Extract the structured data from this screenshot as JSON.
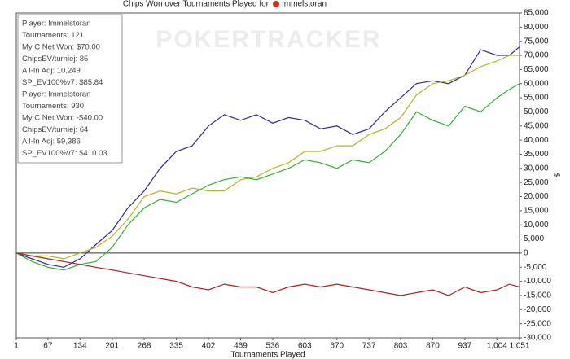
{
  "chart_data": {
    "type": "line",
    "title": "Chips Won over Tournaments Played for",
    "player": "Immelstoran",
    "x_label": "Tournaments Played",
    "y_label": "$",
    "watermark": "POKERTRACKER",
    "info_box": [
      "Player: Immelstoran",
      "Tournaments: 121",
      "My C Net Won: $70.00",
      "ChipsEV/turniej: 85",
      "All-In Adj: 10,249",
      "SP_EV100%v7: $85.84",
      "Player: Immelstoran",
      "Tournaments: 930",
      "My C Net Won: -$40.00",
      "ChipsEV/turniej: 64",
      "All-In Adj: 59,386",
      "SP_EV100%v7: $410.03"
    ],
    "x": [
      1,
      34,
      67,
      100,
      134,
      167,
      201,
      234,
      268,
      301,
      335,
      368,
      402,
      435,
      469,
      502,
      536,
      569,
      603,
      636,
      670,
      703,
      737,
      770,
      803,
      836,
      870,
      903,
      937,
      970,
      1004,
      1030,
      1051
    ],
    "series": [
      {
        "color": "#2a2a9c",
        "values": [
          0,
          -2000,
          -4000,
          -5000,
          -2000,
          3000,
          8000,
          16000,
          22000,
          30000,
          36000,
          38000,
          45000,
          49000,
          47000,
          49000,
          46000,
          48000,
          47000,
          44000,
          45000,
          42000,
          44000,
          50000,
          55000,
          60000,
          61000,
          60000,
          63000,
          72000,
          70000,
          70000,
          73000
        ]
      },
      {
        "color": "#b4b42c",
        "values": [
          0,
          -1000,
          -1000,
          -2000,
          0,
          2000,
          6000,
          12000,
          20000,
          22000,
          21000,
          23000,
          22000,
          22000,
          26000,
          27000,
          30000,
          32000,
          36000,
          36000,
          38000,
          38000,
          42000,
          44000,
          48000,
          56000,
          60000,
          61000,
          63000,
          66000,
          68000,
          70000,
          70000
        ]
      },
      {
        "color": "#34b034",
        "values": [
          0,
          -3000,
          -5000,
          -6000,
          -4000,
          -3000,
          2000,
          10000,
          16000,
          19000,
          18000,
          21000,
          24000,
          26000,
          27000,
          26000,
          28000,
          30000,
          33000,
          32000,
          30000,
          33000,
          32000,
          36000,
          42000,
          50000,
          47000,
          45000,
          52000,
          50000,
          55000,
          58000,
          60000
        ]
      },
      {
        "color": "#b02020",
        "values": [
          0,
          -1000,
          -2000,
          -3000,
          -4000,
          -5000,
          -6000,
          -7000,
          -8000,
          -9000,
          -10000,
          -12000,
          -13000,
          -11000,
          -12000,
          -12000,
          -14000,
          -12000,
          -11000,
          -12000,
          -11000,
          -12000,
          -13000,
          -14000,
          -15000,
          -14000,
          -13000,
          -15000,
          -12000,
          -14000,
          -13000,
          -11000,
          -12000
        ]
      }
    ],
    "xlim": [
      1,
      1051
    ],
    "xticks": [
      1,
      67,
      134,
      201,
      268,
      335,
      402,
      469,
      536,
      603,
      670,
      737,
      803,
      870,
      937,
      {
        "value": 1004,
        "label": "1,004"
      },
      {
        "value": 1051,
        "label": "1,051"
      }
    ],
    "ylim": [
      -30000,
      85000
    ],
    "yticks": [
      {
        "value": -30000,
        "label": "-30,000"
      },
      {
        "value": -25000,
        "label": "-25,000"
      },
      {
        "value": -20000,
        "label": "-20,000"
      },
      {
        "value": -15000,
        "label": "-15,000"
      },
      {
        "value": -10000,
        "label": "-10,000"
      },
      {
        "value": -5000,
        "label": "-5,000"
      },
      0,
      {
        "value": 5000,
        "label": "5,000"
      },
      {
        "value": 10000,
        "label": "10,000"
      },
      {
        "value": 15000,
        "label": "15,000"
      },
      {
        "value": 20000,
        "label": "20,000"
      },
      {
        "value": 25000,
        "label": "25,000"
      },
      {
        "value": 30000,
        "label": "30,000"
      },
      {
        "value": 35000,
        "label": "35,000"
      },
      {
        "value": 40000,
        "label": "40,000"
      },
      {
        "value": 45000,
        "label": "45,000"
      },
      {
        "value": 50000,
        "label": "50,000"
      },
      {
        "value": 55000,
        "label": "55,000"
      },
      {
        "value": 60000,
        "label": "60,000"
      },
      {
        "value": 65000,
        "label": "65,000"
      },
      {
        "value": 70000,
        "label": "70,000"
      },
      {
        "value": 75000,
        "label": "75,000"
      },
      {
        "value": 80000,
        "label": "80,000"
      },
      {
        "value": 85000,
        "label": "85,000"
      }
    ],
    "y_axis_side": "right",
    "zero_line": true
  }
}
